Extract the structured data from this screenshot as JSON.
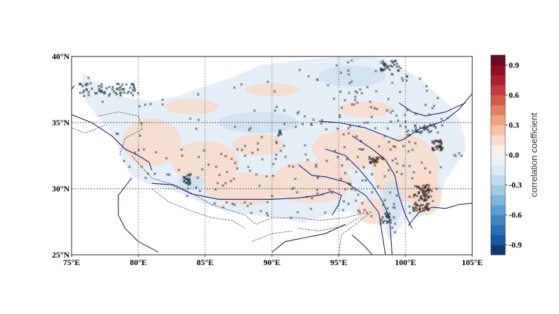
{
  "map": {
    "lon_range": [
      75,
      105
    ],
    "lat_range": [
      25,
      40
    ],
    "lon_ticks": [
      "75°E",
      "80°E",
      "85°E",
      "90°E",
      "95°E",
      "100°E",
      "105°E"
    ],
    "lat_ticks": [
      "25°N",
      "30°N",
      "35°N",
      "40°N"
    ],
    "gridlines": true,
    "marker_symbol": "x",
    "marker_color": "#333333",
    "river_color": "#1a1a6e",
    "border_color": "#333333"
  },
  "colorbar": {
    "label": "correlation coefficient",
    "range": [
      -1,
      1
    ],
    "bins": 20,
    "colormap": "RdBu_r",
    "tick_labels": [
      "-0.9",
      "-0.6",
      "-0.3",
      "0.0",
      "0.3",
      "0.6",
      "0.9"
    ],
    "tick_values": [
      -0.9,
      -0.6,
      -0.3,
      0.0,
      0.3,
      0.6,
      0.9
    ],
    "colors": [
      "#0d3b72",
      "#1a56a0",
      "#2a6db3",
      "#3f85c1",
      "#5b9ecf",
      "#7fb5da",
      "#a2cbe4",
      "#c1dcec",
      "#dae9f2",
      "#eef2f6",
      "#f9efea",
      "#fadbcb",
      "#f6c1a6",
      "#f0a283",
      "#e47f64",
      "#d45c4b",
      "#c13a3a",
      "#ab2130",
      "#900f26",
      "#6b0a20"
    ]
  }
}
